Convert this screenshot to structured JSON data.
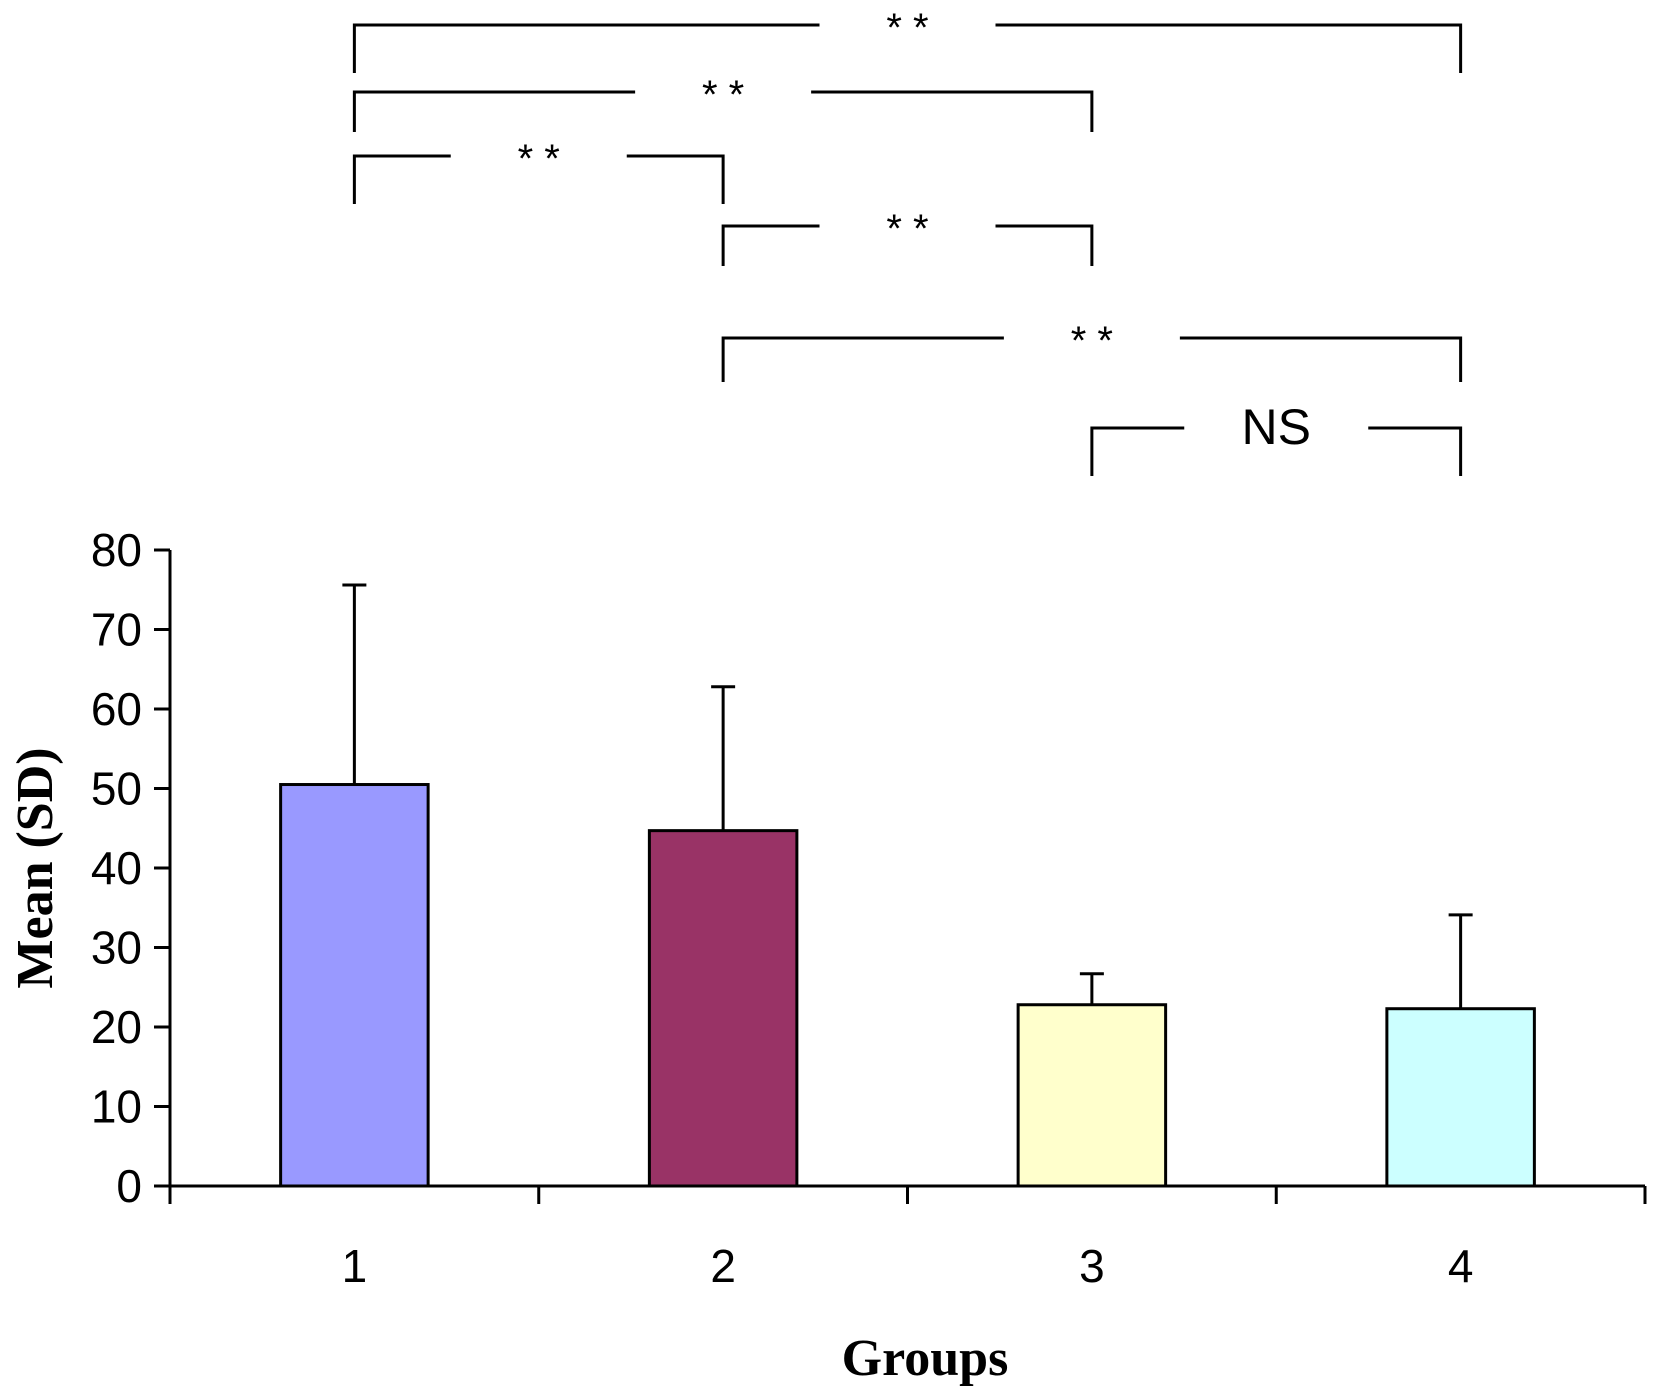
{
  "chart_data": {
    "type": "bar",
    "title": "",
    "xlabel": "Groups",
    "ylabel": "Mean (SD)",
    "categories": [
      "1",
      "2",
      "3",
      "4"
    ],
    "values": [
      50.5,
      44.7,
      22.8,
      22.3
    ],
    "error_upper": [
      75.6,
      62.8,
      26.7,
      34.1
    ],
    "colors": [
      "#9999ff",
      "#993366",
      "#ffffcc",
      "#ccffff"
    ],
    "ylim": [
      0,
      80
    ],
    "yticks": [
      "0",
      "10",
      "20",
      "30",
      "40",
      "50",
      "60",
      "70",
      "80"
    ],
    "grid": false,
    "legend": "none",
    "annotations": [
      {
        "from": 1,
        "to": 4,
        "label": "* *"
      },
      {
        "from": 1,
        "to": 3,
        "label": "* *"
      },
      {
        "from": 1,
        "to": 2,
        "label": "* *"
      },
      {
        "from": 2,
        "to": 3,
        "label": "* *"
      },
      {
        "from": 2,
        "to": 4,
        "label": "* *"
      },
      {
        "from": 3,
        "to": 4,
        "label": "NS"
      }
    ]
  }
}
